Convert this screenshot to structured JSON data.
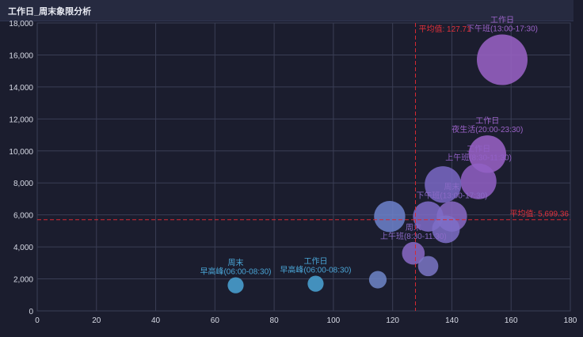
{
  "panel": {
    "title": "工作日_周末象限分析"
  },
  "colors": {
    "background": "#1b1d2e",
    "grid": "#3a3e55",
    "reference": "#d62a33"
  },
  "chart_data": {
    "type": "scatter",
    "title": "工作日_周末象限分析",
    "xlim": [
      0,
      180
    ],
    "ylim": [
      0,
      18000
    ],
    "xticks": [
      "0",
      "20",
      "40",
      "60",
      "80",
      "100",
      "120",
      "140",
      "160",
      "180"
    ],
    "yticks": [
      "0",
      "2,000",
      "4,000",
      "6,000",
      "8,000",
      "10,000",
      "12,000",
      "14,000",
      "16,000",
      "18,000"
    ],
    "grid": true,
    "reference_lines": {
      "x": {
        "value": 127.71,
        "label": "平均值: 127.71"
      },
      "y": {
        "value": 5699.36,
        "label": "平均值: 5,699.36"
      }
    },
    "points": [
      {
        "x": 157,
        "y": 15700,
        "size": 1.0,
        "color": "#9b63c8",
        "label1": "工作日",
        "label2": "下午班(13:00-17:30)"
      },
      {
        "x": 152,
        "y": 9800,
        "size": 0.55,
        "color": "#9b63c8",
        "label1": "工作日",
        "label2": "夜生活(20:00-23:30)"
      },
      {
        "x": 149,
        "y": 8100,
        "size": 0.5,
        "color": "#9260c6",
        "label1": "工作日",
        "label2": "上午班(8:30-11:30)"
      },
      {
        "x": 137,
        "y": 7900,
        "size": 0.52,
        "color": "#7a68c6",
        "label1": "",
        "label2": ""
      },
      {
        "x": 140,
        "y": 5900,
        "size": 0.36,
        "color": "#8a6ac6",
        "label1": "周末",
        "label2": "下午班(13:00-17:30)"
      },
      {
        "x": 132,
        "y": 5900,
        "size": 0.36,
        "color": "#7f6cc8",
        "label1": "",
        "label2": ""
      },
      {
        "x": 119,
        "y": 5900,
        "size": 0.38,
        "color": "#6d82cc",
        "label1": "",
        "label2": ""
      },
      {
        "x": 138,
        "y": 5100,
        "size": 0.3,
        "color": "#7e6fc8",
        "label1": "",
        "label2": ""
      },
      {
        "x": 127,
        "y": 3600,
        "size": 0.2,
        "color": "#8a6ac6",
        "label1": "周末",
        "label2": "上午班(8:30-11:30)"
      },
      {
        "x": 132,
        "y": 2800,
        "size": 0.16,
        "color": "#7a76c4",
        "label1": "",
        "label2": ""
      },
      {
        "x": 115,
        "y": 1950,
        "size": 0.12,
        "color": "#6f86c8",
        "label1": "",
        "label2": ""
      },
      {
        "x": 94,
        "y": 1700,
        "size": 0.1,
        "color": "#4aa5d6",
        "label1": "工作日",
        "label2": "早高峰(06:00-08:30)"
      },
      {
        "x": 67,
        "y": 1600,
        "size": 0.1,
        "color": "#4aa5d6",
        "label1": "周末",
        "label2": "早高峰(06:00-08:30)"
      }
    ]
  }
}
